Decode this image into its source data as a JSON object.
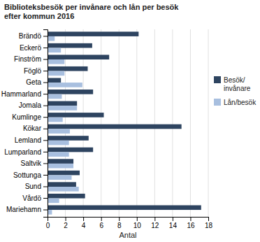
{
  "chart_data": {
    "type": "bar",
    "orientation": "horizontal",
    "title": "Biblioteksbesök per invånare och lån per besök\nefter kommun 2016",
    "categories": [
      "Mariehamn",
      "Vårdö",
      "Sund",
      "Sottunga",
      "Saltvik",
      "Lumparland",
      "Lemland",
      "Kökar",
      "Kumlinge",
      "Jomala",
      "Hammarland",
      "Geta",
      "Föglö",
      "Finström",
      "Eckerö",
      "Brändö"
    ],
    "series": [
      {
        "name": "Besök/\ninvånare",
        "color": "#2E4460",
        "values": [
          17.2,
          4.2,
          3.2,
          3.6,
          2.9,
          5.1,
          4.6,
          15.0,
          6.3,
          3.3,
          5.1,
          1.5,
          4.5,
          6.9,
          5.0,
          10.2
        ]
      },
      {
        "name": "Lån/besök",
        "color": "#A8BFDF",
        "values": [
          0.5,
          1.3,
          3.5,
          2.7,
          2.9,
          2.4,
          2.4,
          2.5,
          1.7,
          3.3,
          1.6,
          3.9,
          1.9,
          1.9,
          1.5,
          0.8
        ]
      }
    ],
    "xlabel": "Antal",
    "xlim": [
      0,
      18
    ],
    "xticks": [
      0,
      2,
      4,
      6,
      8,
      10,
      12,
      14,
      16,
      18
    ],
    "grid": true,
    "legend": "right"
  }
}
